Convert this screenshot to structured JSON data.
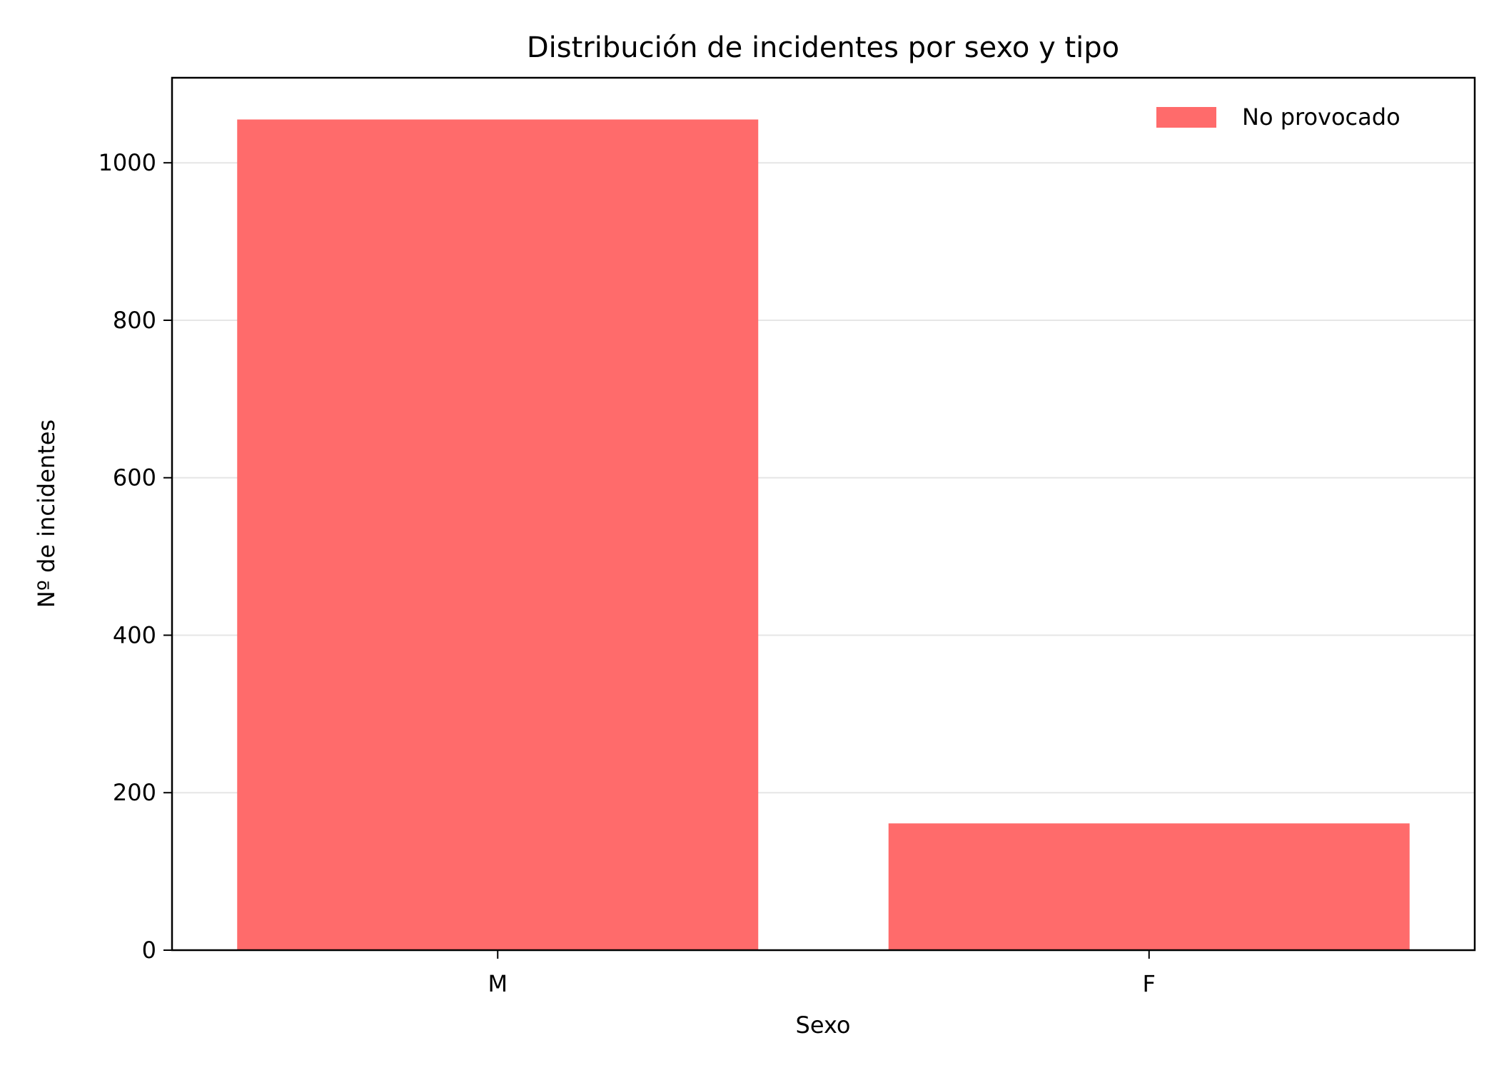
{
  "chart_data": {
    "type": "bar",
    "title": "Distribución de incidentes por sexo y tipo",
    "xlabel": "Sexo",
    "ylabel": "Nº de incidentes",
    "categories": [
      "M",
      "F"
    ],
    "series": [
      {
        "name": "No provocado",
        "values": [
          1055,
          161
        ],
        "color": "#ff6b6b"
      }
    ],
    "ylim": [
      0,
      1108
    ],
    "yticks": [
      0,
      200,
      400,
      600,
      800,
      1000
    ],
    "grid": "horizontal",
    "legend_position": "top-right"
  }
}
